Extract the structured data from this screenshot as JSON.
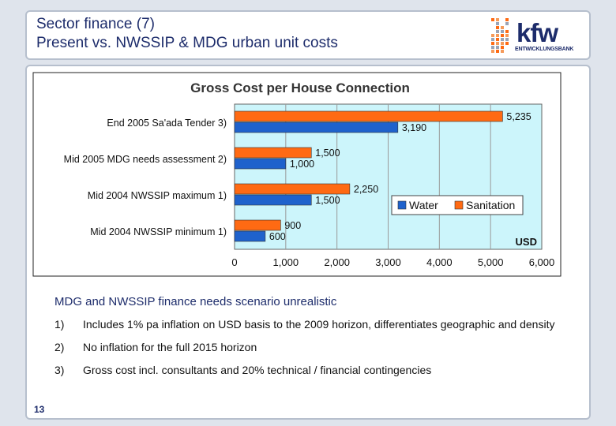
{
  "slide": {
    "title_line1": "Sector finance (7)",
    "title_line2": "Present vs. NWSSIP & MDG urban unit costs",
    "logo_text": "kfw",
    "logo_subtext": "ENTWICKLUNGSBANK",
    "page_number": "13"
  },
  "chart_data": {
    "type": "bar",
    "orientation": "horizontal",
    "title": "Gross Cost per House Connection",
    "unit_label": "USD",
    "categories": [
      "End 2005 Sa'ada Tender 3)",
      "Mid 2005 MDG needs assessment 2)",
      "Mid 2004 NWSSIP maximum 1)",
      "Mid 2004 NWSSIP minimum 1)"
    ],
    "series": [
      {
        "name": "Sanitation",
        "color": "#ff6a13",
        "values": [
          5235,
          1500,
          2250,
          900
        ]
      },
      {
        "name": "Water",
        "color": "#1f62cc",
        "values": [
          3190,
          1000,
          1500,
          600
        ]
      }
    ],
    "xlim": [
      0,
      6000
    ],
    "xticks": [
      0,
      1000,
      2000,
      3000,
      4000,
      5000,
      6000
    ],
    "xtick_labels": [
      "0",
      "1,000",
      "2,000",
      "3,000",
      "4,000",
      "5,000",
      "6,000"
    ],
    "data_labels": [
      [
        "5,235",
        "1,500",
        "2,250",
        "900"
      ],
      [
        "3,190",
        "1,000",
        "1,500",
        "600"
      ]
    ],
    "legend_order": [
      "Water",
      "Sanitation"
    ],
    "legend_position": "right",
    "grid": true,
    "plot_background": "#ccf5fb"
  },
  "content": {
    "headline": "MDG and NWSSIP finance needs scenario unrealistic",
    "notes": [
      {
        "num": "1)",
        "text": "Includes 1% pa inflation on USD basis to the 2009 horizon, differentiates geographic and density"
      },
      {
        "num": "2)",
        "text": "No inflation for the full 2015 horizon"
      },
      {
        "num": "3)",
        "text": "Gross cost incl. consultants and 20% technical / financial contingencies"
      }
    ]
  }
}
